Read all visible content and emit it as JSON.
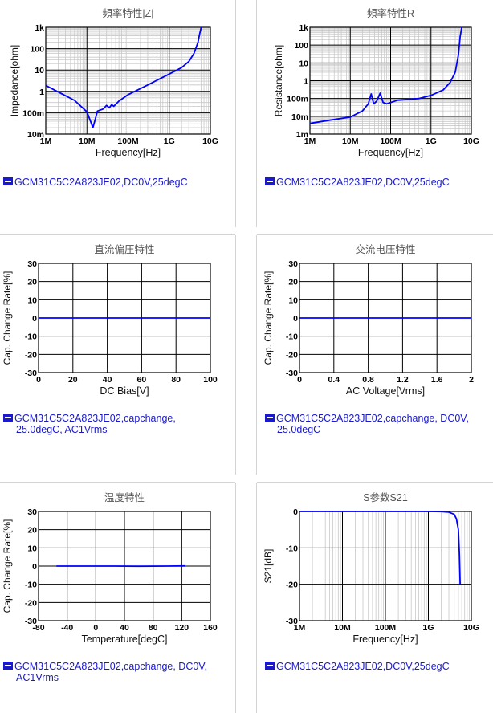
{
  "legend_color": "#1a1acc",
  "curve_color": "#0000ff",
  "charts": [
    {
      "legend": "GCM31C5C2A823JE02,DC0V,25degC"
    },
    {
      "legend": "GCM31C5C2A823JE02,DC0V,25degC"
    },
    {
      "legend": "GCM31C5C2A823JE02,capchange,",
      "legend2": "25.0degC, AC1Vrms"
    },
    {
      "legend": "GCM31C5C2A823JE02,capchange, DC0V,",
      "legend2": "25.0degC"
    },
    {
      "legend": "GCM31C5C2A823JE02,capchange, DC0V,",
      "legend2": "AC1Vrms"
    },
    {
      "legend": "GCM31C5C2A823JE02,DC0V,25degC"
    }
  ],
  "chart_data": [
    {
      "type": "line",
      "title": "頻率特性|Z|",
      "xlabel": "Frequency[Hz]",
      "ylabel": "Impedance[ohm]",
      "x_scale": "log",
      "y_scale": "log",
      "xlim": [
        1000000,
        10000000000
      ],
      "ylim": [
        0.01,
        1000
      ],
      "x_ticks": [
        "1M",
        "10M",
        "100M",
        "1G",
        "10G"
      ],
      "y_ticks": [
        "10m",
        "100m",
        "1",
        "10",
        "100",
        "1k"
      ],
      "grid": true,
      "series": [
        {
          "x": [
            1000000,
            2000000,
            5000000,
            10000000,
            14000000,
            16000000,
            18000000,
            25000000,
            30000000,
            35000000,
            40000000,
            45000000,
            60000000,
            100000000,
            300000000,
            1000000000,
            2000000000,
            3000000000,
            4000000000,
            5000000000,
            5500000000,
            6000000000
          ],
          "y": [
            1.9,
            0.95,
            0.38,
            0.11,
            0.02,
            0.05,
            0.12,
            0.15,
            0.22,
            0.17,
            0.24,
            0.2,
            0.35,
            0.7,
            2.0,
            6.5,
            13,
            25,
            60,
            200,
            500,
            1000
          ]
        }
      ]
    },
    {
      "type": "line",
      "title": "頻率特性R",
      "xlabel": "Frequency[Hz]",
      "ylabel": "Resistance[ohm]",
      "x_scale": "log",
      "y_scale": "log",
      "xlim": [
        1000000,
        10000000000
      ],
      "ylim": [
        0.001,
        1000
      ],
      "x_ticks": [
        "1M",
        "10M",
        "100M",
        "1G",
        "10G"
      ],
      "y_ticks": [
        "1m",
        "10m",
        "100m",
        "1",
        "10",
        "100",
        "1k"
      ],
      "grid": true,
      "series": [
        {
          "x": [
            1000000,
            3000000,
            10000000,
            20000000,
            28000000,
            33000000,
            38000000,
            45000000,
            55000000,
            65000000,
            80000000,
            150000000,
            500000000,
            1000000000,
            2000000000,
            3000000000,
            4000000000,
            4800000000,
            5300000000,
            5800000000
          ],
          "y": [
            0.004,
            0.006,
            0.009,
            0.02,
            0.05,
            0.18,
            0.05,
            0.07,
            0.2,
            0.06,
            0.05,
            0.08,
            0.1,
            0.15,
            0.3,
            0.8,
            3,
            30,
            300,
            1000
          ]
        }
      ]
    },
    {
      "type": "line",
      "title": "直流偏圧特性",
      "xlabel": "DC Bias[V]",
      "ylabel": "Cap. Change Rate[%]",
      "xlim": [
        0,
        100
      ],
      "ylim": [
        -30,
        30
      ],
      "x_ticks": [
        "0",
        "20",
        "40",
        "60",
        "80",
        "100"
      ],
      "y_ticks": [
        "-30",
        "-20",
        "-10",
        "0",
        "10",
        "20",
        "30"
      ],
      "grid": true,
      "series": [
        {
          "x": [
            0,
            20,
            40,
            60,
            80,
            100
          ],
          "y": [
            0,
            0,
            0,
            0,
            0,
            0
          ]
        }
      ]
    },
    {
      "type": "line",
      "title": "交流电压特性",
      "xlabel": "AC Voltage[Vrms]",
      "ylabel": "Cap. Change Rate[%]",
      "xlim": [
        0,
        2
      ],
      "ylim": [
        -30,
        30
      ],
      "x_ticks": [
        "0",
        "0.4",
        "0.8",
        "1.2",
        "1.6",
        "2"
      ],
      "y_ticks": [
        "-30",
        "-20",
        "-10",
        "0",
        "10",
        "20",
        "30"
      ],
      "grid": true,
      "series": [
        {
          "x": [
            0,
            0.4,
            0.8,
            1.2,
            1.6,
            2
          ],
          "y": [
            0,
            0,
            0,
            0,
            0,
            0
          ]
        }
      ]
    },
    {
      "type": "line",
      "title": "温度特性",
      "xlabel": "Temperature[degC]",
      "ylabel": "Cap. Change Rate[%]",
      "xlim": [
        -80,
        160
      ],
      "ylim": [
        -30,
        30
      ],
      "x_ticks": [
        "-80",
        "-40",
        "0",
        "40",
        "80",
        "120",
        "160"
      ],
      "y_ticks": [
        "-30",
        "-20",
        "-10",
        "0",
        "10",
        "20",
        "30"
      ],
      "grid": true,
      "series": [
        {
          "x": [
            -55,
            -20,
            0,
            25,
            60,
            100,
            125
          ],
          "y": [
            0,
            0,
            0,
            0,
            -0.1,
            0,
            0.1
          ]
        }
      ]
    },
    {
      "type": "line",
      "title": "S参数S21",
      "xlabel": "Frequency[Hz]",
      "ylabel": "S21[dB]",
      "x_scale": "log",
      "xlim": [
        1000000,
        10000000000
      ],
      "ylim": [
        -30,
        0
      ],
      "x_ticks": [
        "1M",
        "10M",
        "100M",
        "1G",
        "10G"
      ],
      "y_ticks": [
        "-30",
        "-20",
        "-10",
        "0"
      ],
      "grid": true,
      "series": [
        {
          "x": [
            1000000,
            100000000,
            1000000000,
            2000000000,
            3000000000,
            4000000000,
            4500000000,
            5000000000,
            5300000000,
            5500000000
          ],
          "y": [
            0,
            0,
            -0.01,
            -0.05,
            -0.2,
            -0.8,
            -2,
            -5,
            -12,
            -20
          ]
        }
      ]
    }
  ]
}
